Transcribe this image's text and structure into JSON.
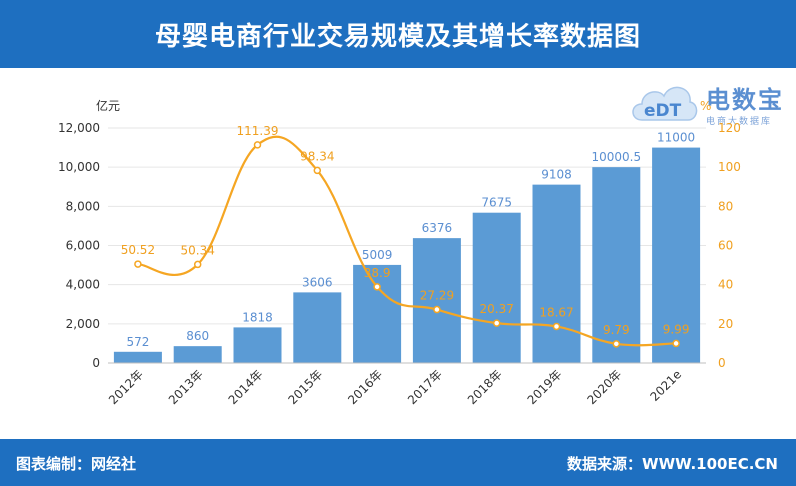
{
  "header": {
    "title": "母婴电商行业交易规模及其增长率数据图"
  },
  "footer": {
    "left": "图表编制：网经社",
    "right": "数据来源：WWW.100EC.CN"
  },
  "logo": {
    "main": "电数宝",
    "sub": "电商大数据库",
    "mark": "eDT"
  },
  "colors": {
    "bar": "#5b9bd5",
    "line": "#f5a623",
    "header": "#1e6fc0",
    "bar_label": "#5b8fd1",
    "line_label": "#f0a020"
  },
  "chart_data": {
    "type": "bar",
    "categories": [
      "2012年",
      "2013年",
      "2014年",
      "2015年",
      "2016年",
      "2017年",
      "2018年",
      "2019年",
      "2020年",
      "2021e"
    ],
    "series": [
      {
        "values": [
          572,
          860,
          1818,
          3606,
          5009,
          6376,
          7675,
          9108,
          10000.5,
          11000
        ],
        "labels": [
          "572",
          "860",
          "1818",
          "3606",
          "5009",
          "6376",
          "7675",
          "9108",
          "10000.5",
          "11000"
        ]
      },
      {
        "type": "line",
        "axis": "right",
        "values": [
          50.52,
          50.34,
          111.39,
          98.34,
          38.9,
          27.29,
          20.37,
          18.67,
          9.79,
          9.99
        ],
        "labels": [
          "50.52",
          "50.34",
          "111.39",
          "98.34",
          "38.9",
          "27.29",
          "20.37",
          "18.67",
          "9.79",
          "9.99"
        ]
      }
    ],
    "y_left": {
      "unit": "亿元",
      "range": [
        0,
        12000
      ],
      "ticks": [
        "0",
        "2,000",
        "4,000",
        "6,000",
        "8,000",
        "10,000",
        "12,000"
      ]
    },
    "y_right": {
      "unit": "%",
      "range": [
        0,
        120
      ],
      "ticks": [
        "0",
        "20",
        "40",
        "60",
        "80",
        "100",
        "120"
      ]
    },
    "grid": true
  }
}
